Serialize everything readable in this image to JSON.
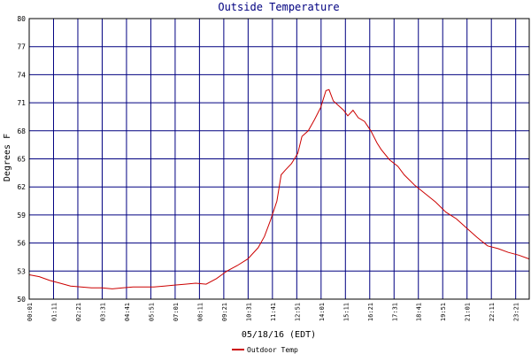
{
  "chart_data": {
    "type": "line",
    "title": "Outside Temperature",
    "xlabel": "05/18/16 (EDT)",
    "ylabel": "Degrees F",
    "ylim": [
      50,
      80
    ],
    "yticks": [
      "50",
      "53",
      "56",
      "59",
      "62",
      "65",
      "68",
      "71",
      "74",
      "77",
      "80"
    ],
    "xticks": [
      "00:01",
      "01:11",
      "02:21",
      "03:31",
      "04:41",
      "05:51",
      "07:01",
      "08:11",
      "09:21",
      "10:31",
      "11:41",
      "12:51",
      "14:01",
      "15:11",
      "16:21",
      "17:31",
      "18:41",
      "19:51",
      "21:01",
      "22:11",
      "23:21"
    ],
    "xlim_hours": [
      0.0167,
      24.0
    ],
    "grid": true,
    "legend_position": "bottom-center",
    "colors": {
      "series": "#cc0000",
      "grid": "#000080",
      "axis": "#000000",
      "title": "#000080"
    },
    "series": [
      {
        "name": "Outdoor Temp",
        "x_hours": [
          0.02,
          0.5,
          1.0,
          1.5,
          2.0,
          2.5,
          3.0,
          3.5,
          4.0,
          4.5,
          5.0,
          5.5,
          6.0,
          6.5,
          7.0,
          7.5,
          8.0,
          8.5,
          9.0,
          9.5,
          10.0,
          10.5,
          11.0,
          11.3,
          11.6,
          11.9,
          12.1,
          12.3,
          12.6,
          12.9,
          13.1,
          13.4,
          13.7,
          14.0,
          14.25,
          14.4,
          14.6,
          14.8,
          15.1,
          15.3,
          15.55,
          15.8,
          16.1,
          16.4,
          16.7,
          16.9,
          17.3,
          17.7,
          18.0,
          18.5,
          19.0,
          19.5,
          20.0,
          20.5,
          21.0,
          21.5,
          22.0,
          22.5,
          23.0,
          23.5,
          24.0
        ],
        "y": [
          52.6,
          52.4,
          52.0,
          51.7,
          51.4,
          51.3,
          51.2,
          51.2,
          51.1,
          51.2,
          51.3,
          51.3,
          51.3,
          51.4,
          51.5,
          51.6,
          51.7,
          51.6,
          52.2,
          53.0,
          53.6,
          54.3,
          55.5,
          56.7,
          58.5,
          60.5,
          63.3,
          63.8,
          64.5,
          65.6,
          67.4,
          68.0,
          69.2,
          70.5,
          72.3,
          72.4,
          71.2,
          70.8,
          70.2,
          69.6,
          70.2,
          69.4,
          69.0,
          68.0,
          66.7,
          66.0,
          64.9,
          64.2,
          63.3,
          62.2,
          61.3,
          60.4,
          59.3,
          58.6,
          57.6,
          56.6,
          55.7,
          55.4,
          55.0,
          54.7,
          54.3
        ]
      }
    ]
  }
}
